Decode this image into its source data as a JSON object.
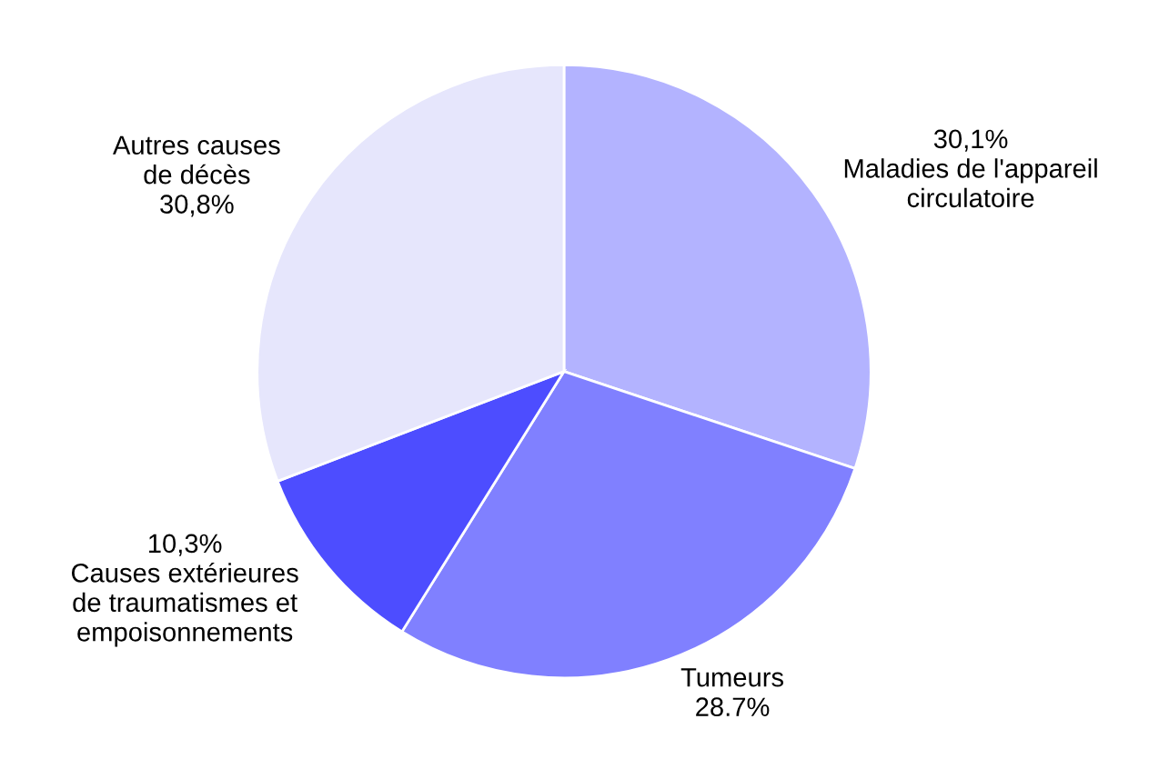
{
  "chart_data": {
    "type": "pie",
    "categories": [
      "Maladies de l'appareil\ncirculatoire",
      "Tumeurs",
      "Causes extérieures\nde traumatismes et\nempoisonnements",
      "Autres causes\nde décès"
    ],
    "values": [
      30.1,
      28.7,
      10.3,
      30.8
    ],
    "value_labels": [
      "30,1%",
      "28.7%",
      "10,3%",
      "30,8%"
    ],
    "colors": [
      "#b3b3ff",
      "#8080ff",
      "#4d4dff",
      "#e6e6fc"
    ]
  }
}
